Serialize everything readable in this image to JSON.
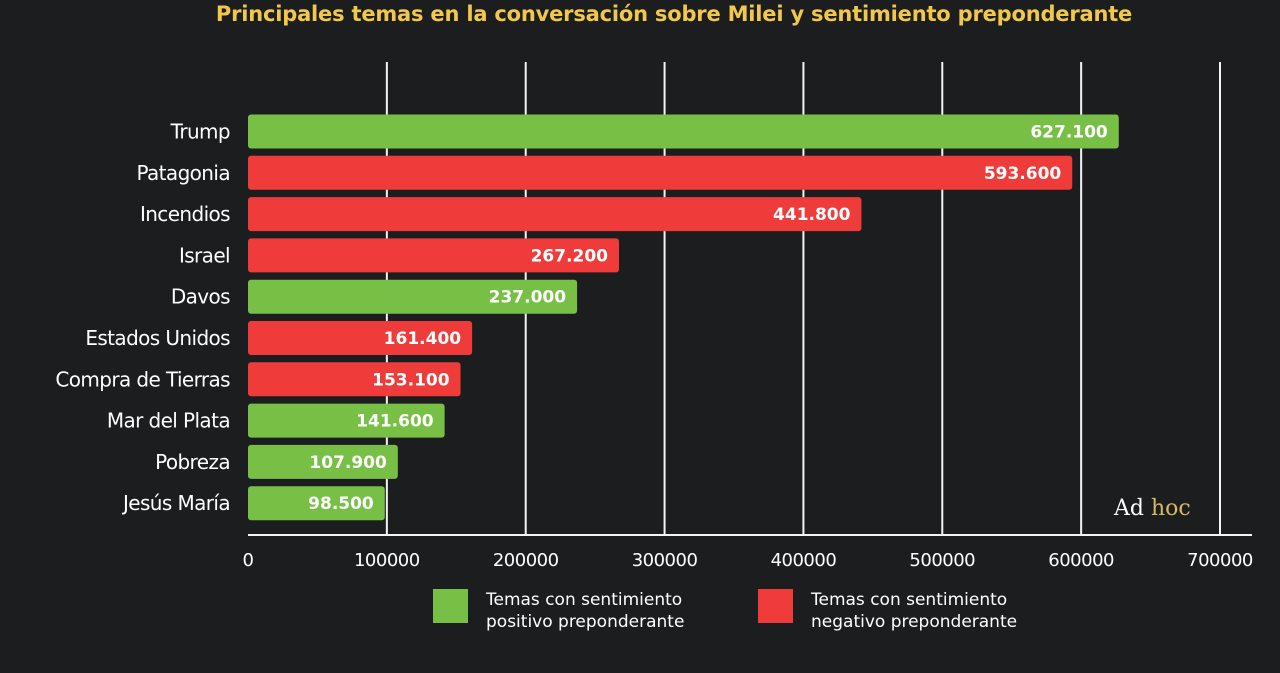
{
  "title": "Principales temas en la conversación sobre Milei y sentimiento preponderante",
  "colors": {
    "positive": "#78c045",
    "negative": "#ef3b3a",
    "grid": "#f4f4f4",
    "background": "#1c1d1f",
    "title": "#f2c84b"
  },
  "chart_data": {
    "type": "bar",
    "orientation": "horizontal",
    "title": "Principales temas en la conversación sobre Milei y sentimiento preponderante",
    "xlabel": "",
    "ylabel": "",
    "xlim": [
      0,
      700000
    ],
    "xticks": [
      0,
      100000,
      200000,
      300000,
      400000,
      500000,
      600000,
      700000
    ],
    "xtick_labels": [
      "0",
      "100000",
      "200000",
      "300000",
      "400000",
      "500000",
      "600000",
      "700000"
    ],
    "categories": [
      "Trump",
      "Patagonia",
      "Incendios",
      "Israel",
      "Davos",
      "Estados Unidos",
      "Compra de Tierras",
      "Mar del Plata",
      "Pobreza",
      "Jesús María"
    ],
    "values": [
      627100,
      593600,
      441800,
      267200,
      237000,
      161400,
      153100,
      141600,
      107900,
      98500
    ],
    "value_labels": [
      "627.100",
      "593.600",
      "441.800",
      "267.200",
      "237.000",
      "161.400",
      "153.100",
      "141.600",
      "107.900",
      "98.500"
    ],
    "sentiment": [
      "positive",
      "negative",
      "negative",
      "negative",
      "positive",
      "negative",
      "negative",
      "positive",
      "positive",
      "positive"
    ],
    "grid": true,
    "legend_position": "bottom"
  },
  "legend": {
    "positive": "Temas con sentimiento positivo preponderante",
    "negative": "Temas con sentimiento negativo preponderante"
  },
  "watermark": {
    "part1": "Ad ",
    "part2": "hoc"
  }
}
